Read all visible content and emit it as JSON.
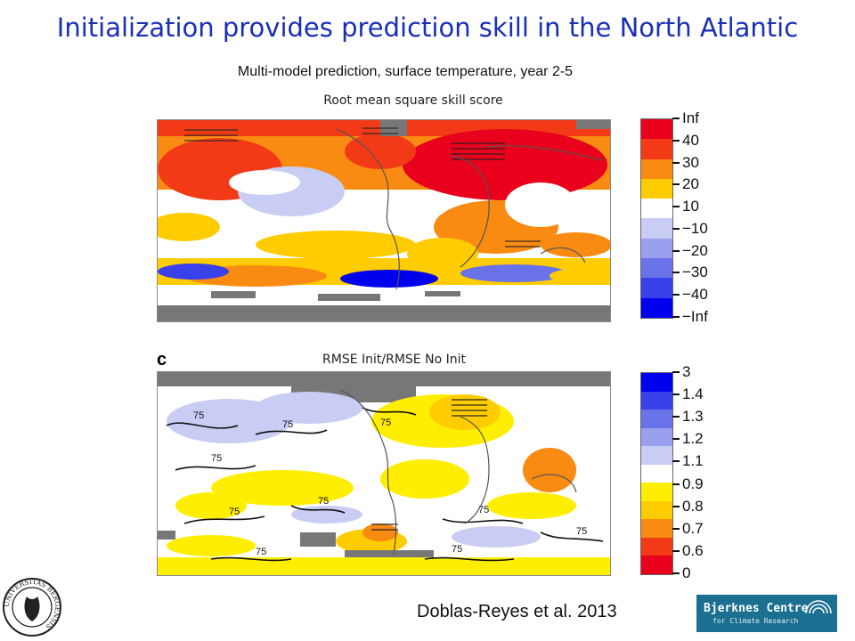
{
  "title": "Initialization provides prediction skill in the North Atlantic",
  "subtitle": "Multi-model prediction, surface temperature, year 2-5",
  "top_panel": {
    "label": "Root mean square skill score",
    "colorbar": {
      "ticks": [
        "Inf",
        "40",
        "30",
        "20",
        "10",
        "−10",
        "−20",
        "−30",
        "−40",
        "−Inf"
      ],
      "colors": [
        "#e8001c",
        "#f23b16",
        "#f98a12",
        "#ffcc00",
        "#ffffff",
        "#c9cdf3",
        "#9aa0ee",
        "#6a72ea",
        "#3a40ea",
        "#0000ee"
      ]
    }
  },
  "bottom_panel": {
    "letter": "c",
    "label": "RMSE Init/RMSE No Init",
    "contour_label": "75",
    "colorbar": {
      "ticks": [
        "3",
        "1.4",
        "1.3",
        "1.2",
        "1.1",
        "0.9",
        "0.8",
        "0.7",
        "0.6",
        "0"
      ],
      "colors": [
        "#0000ee",
        "#3a40ea",
        "#6a72ea",
        "#9aa0ee",
        "#c9cdf3",
        "#ffffff",
        "#ffee00",
        "#ffcc00",
        "#f98a12",
        "#f23b16",
        "#e8001c"
      ]
    }
  },
  "citation": "Doblas-Reyes et al. 2013",
  "logos": {
    "left_name": "university-of-bergen-seal",
    "left_text": "UNIVERSITAS BERGENSIS",
    "right_line1": "Bjerknes Centre",
    "right_line2": "for Climate Research"
  }
}
